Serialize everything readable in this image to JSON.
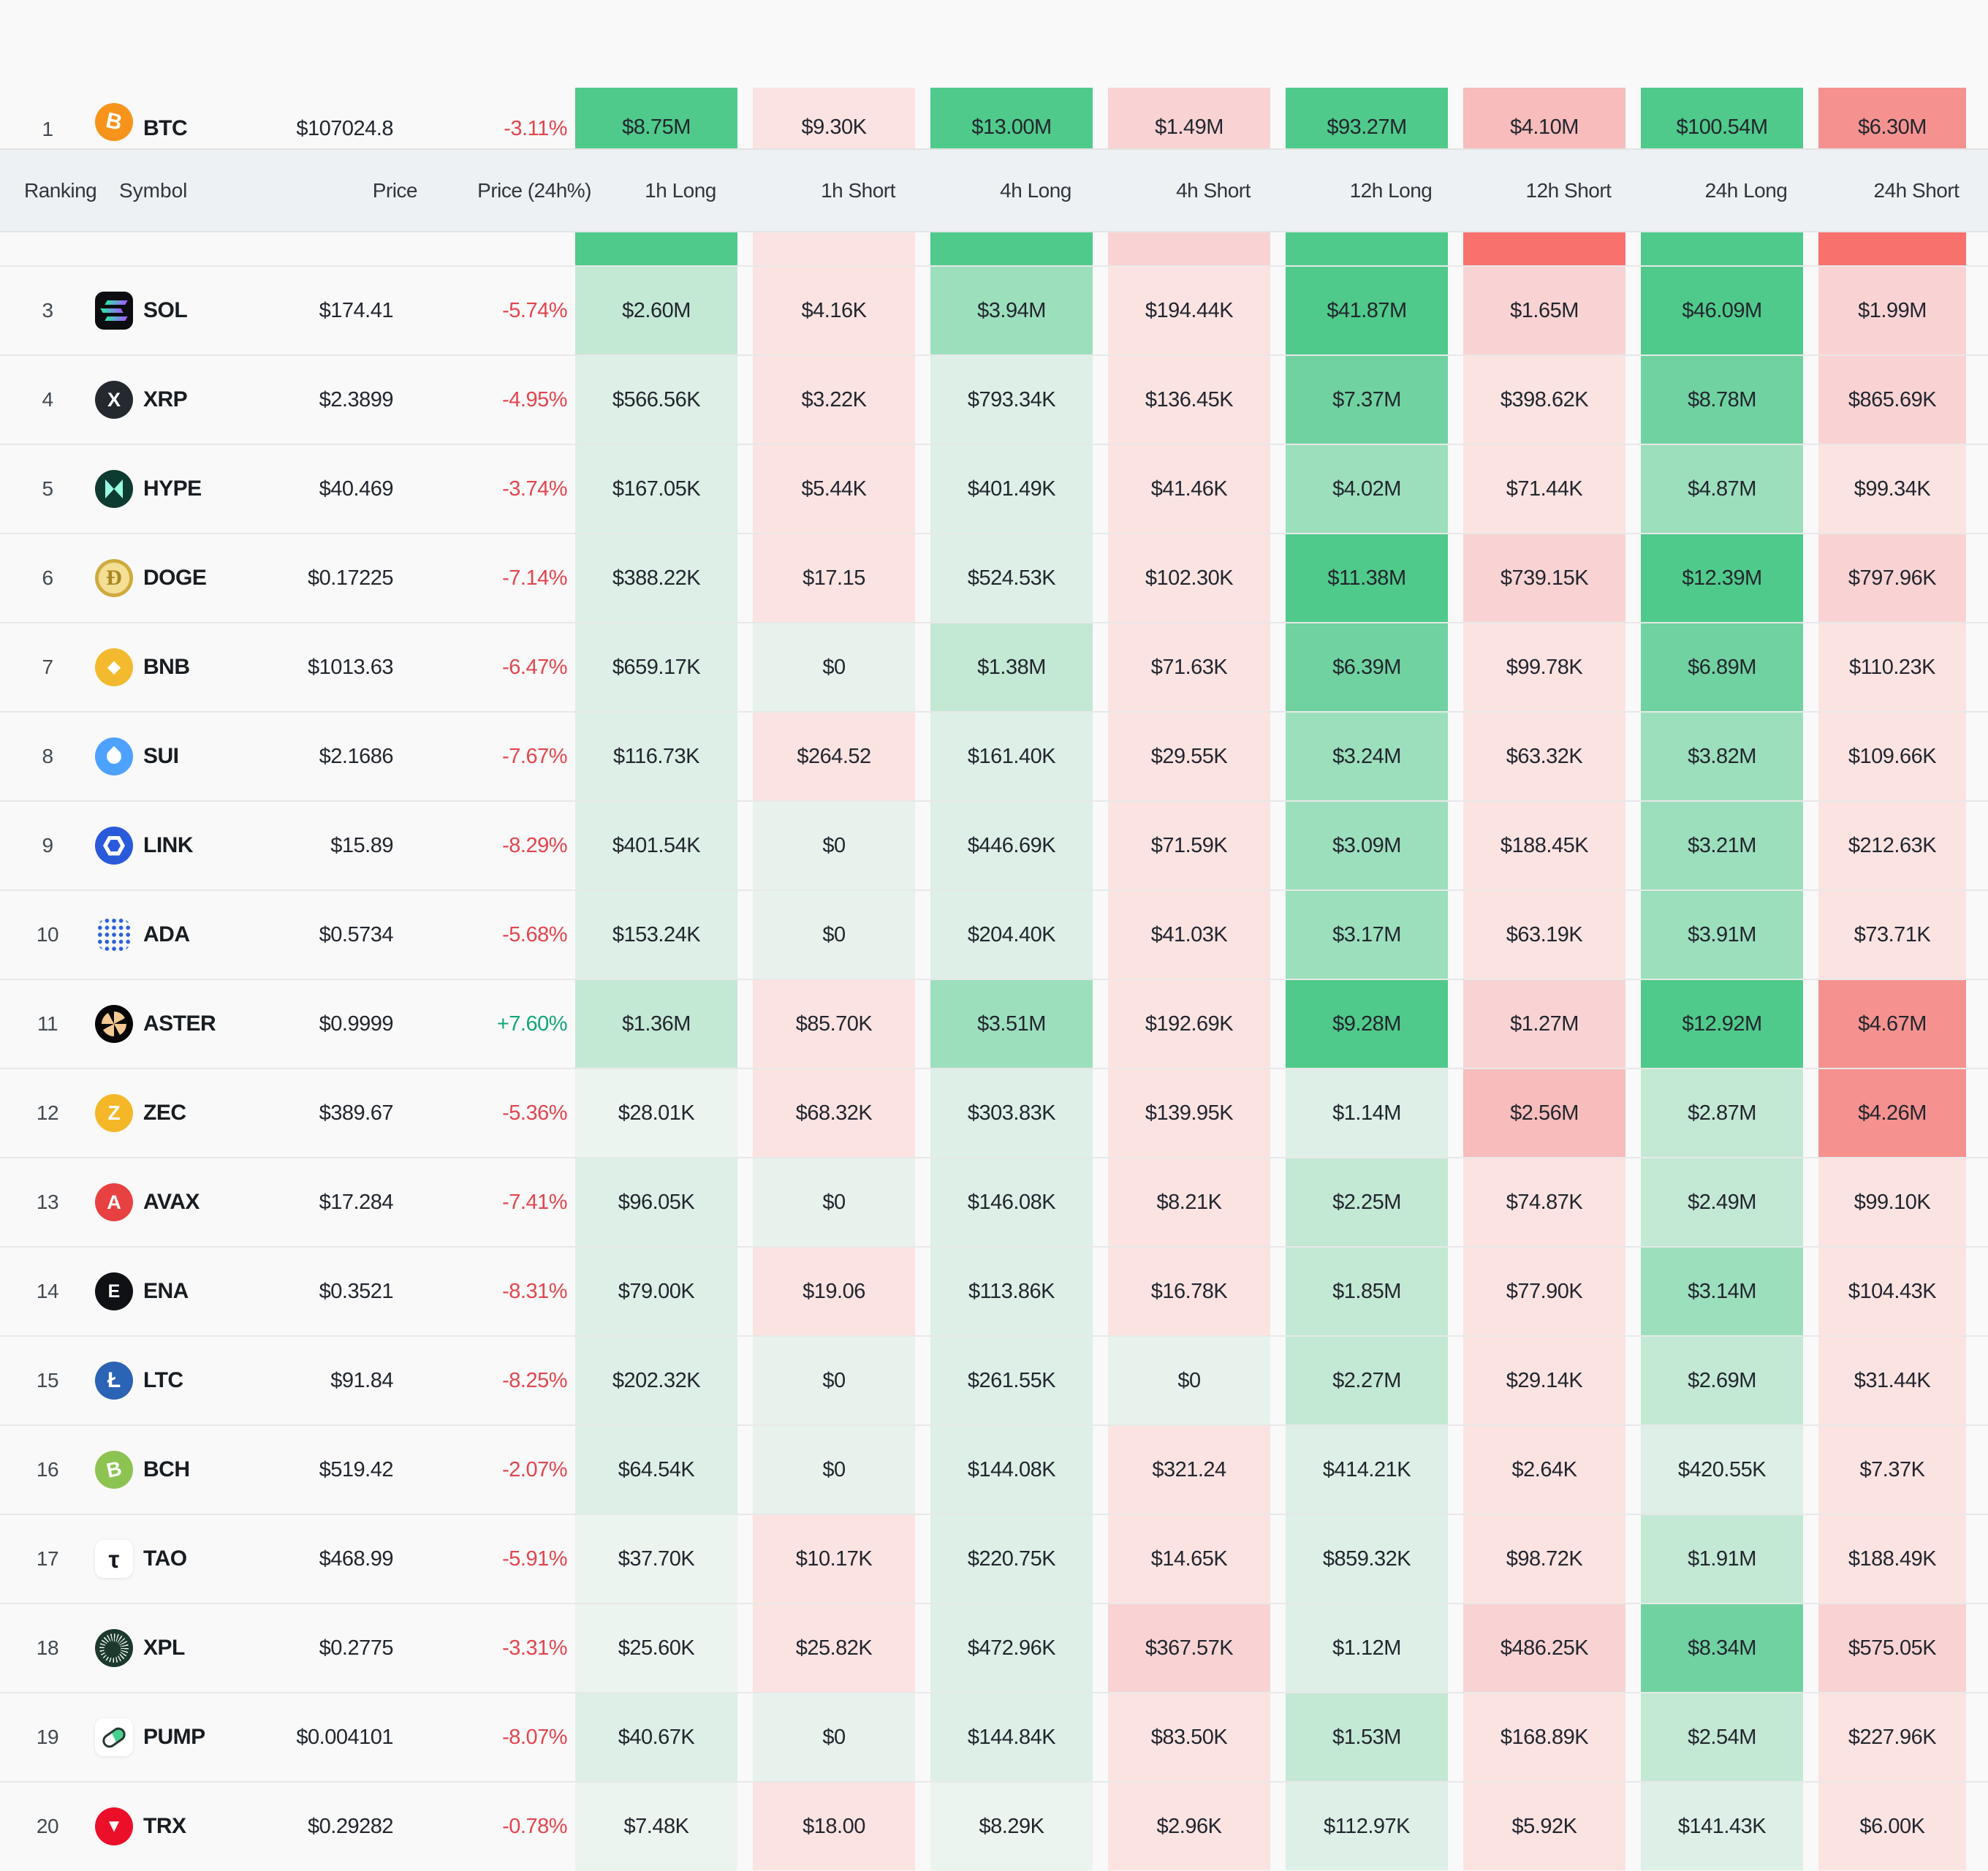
{
  "palette": {
    "g0": "#ebf4ee",
    "g1": "#ddefe6",
    "g2": "#c3e8d4",
    "g3": "#9cdfbd",
    "g4": "#70d2a1",
    "g5": "#4fca8b",
    "r1": "#fbe3e2",
    "r2": "#f9d3d3",
    "r3": "#f7bcbb",
    "r4": "#f5928f",
    "r5": "#f8716d",
    "z": "#e8f2ec"
  },
  "accents": {
    "negative": "#e3454d",
    "positive": "#13a57c",
    "header_bg": "#edf1f3"
  },
  "header": {
    "cols": [
      "Ranking",
      "Symbol",
      "Price",
      "Price (24h%)",
      "1h Long",
      "1h Short",
      "4h Long",
      "4h Short",
      "12h Long",
      "12h Short",
      "24h Long",
      "24h Short"
    ]
  },
  "rows": [
    {
      "kind": "top",
      "rank": "1",
      "symbol": "BTC",
      "price": "$107024.8",
      "change": "-3.11%",
      "icon": {
        "style": "glyph",
        "bg": "#f7931a",
        "fg": "#ffffff",
        "glyph": "B",
        "size": 30,
        "rotate": 12
      },
      "cells": [
        {
          "v": "$8.75M",
          "c": "g5"
        },
        {
          "v": "$9.30K",
          "c": "r1"
        },
        {
          "v": "$13.00M",
          "c": "g5"
        },
        {
          "v": "$1.49M",
          "c": "r2"
        },
        {
          "v": "$93.27M",
          "c": "g5"
        },
        {
          "v": "$4.10M",
          "c": "r3"
        },
        {
          "v": "$100.54M",
          "c": "g5"
        },
        {
          "v": "$6.30M",
          "c": "r4"
        }
      ]
    },
    {
      "kind": "sliver",
      "rank": "",
      "symbol": "",
      "price": "",
      "change": "",
      "cells": [
        {
          "v": "",
          "c": "g5"
        },
        {
          "v": "",
          "c": "r1"
        },
        {
          "v": "",
          "c": "g5"
        },
        {
          "v": "",
          "c": "r2"
        },
        {
          "v": "",
          "c": "g5"
        },
        {
          "v": "",
          "c": "r5"
        },
        {
          "v": "",
          "c": "g5"
        },
        {
          "v": "",
          "c": "r5"
        }
      ]
    },
    {
      "rank": "3",
      "symbol": "SOL",
      "price": "$174.41",
      "change": "-5.74%",
      "icon": {
        "style": "sol",
        "bg": "#0c0d10",
        "shape": "square"
      },
      "cells": [
        {
          "v": "$2.60M",
          "c": "g2"
        },
        {
          "v": "$4.16K",
          "c": "r1"
        },
        {
          "v": "$3.94M",
          "c": "g3"
        },
        {
          "v": "$194.44K",
          "c": "r1"
        },
        {
          "v": "$41.87M",
          "c": "g5"
        },
        {
          "v": "$1.65M",
          "c": "r2"
        },
        {
          "v": "$46.09M",
          "c": "g5"
        },
        {
          "v": "$1.99M",
          "c": "r2"
        }
      ]
    },
    {
      "rank": "4",
      "symbol": "XRP",
      "price": "$2.3899",
      "change": "-4.95%",
      "icon": {
        "style": "glyph",
        "bg": "#23292f",
        "fg": "#ffffff",
        "glyph": "X",
        "size": 27
      },
      "cells": [
        {
          "v": "$566.56K",
          "c": "g1"
        },
        {
          "v": "$3.22K",
          "c": "r1"
        },
        {
          "v": "$793.34K",
          "c": "g1"
        },
        {
          "v": "$136.45K",
          "c": "r1"
        },
        {
          "v": "$7.37M",
          "c": "g4"
        },
        {
          "v": "$398.62K",
          "c": "r1"
        },
        {
          "v": "$8.78M",
          "c": "g4"
        },
        {
          "v": "$865.69K",
          "c": "r2"
        }
      ]
    },
    {
      "rank": "5",
      "symbol": "HYPE",
      "price": "$40.469",
      "change": "-3.74%",
      "icon": {
        "style": "hype",
        "bg": "#0e3b31"
      },
      "cells": [
        {
          "v": "$167.05K",
          "c": "g1"
        },
        {
          "v": "$5.44K",
          "c": "r1"
        },
        {
          "v": "$401.49K",
          "c": "g1"
        },
        {
          "v": "$41.46K",
          "c": "r1"
        },
        {
          "v": "$4.02M",
          "c": "g3"
        },
        {
          "v": "$71.44K",
          "c": "r1"
        },
        {
          "v": "$4.87M",
          "c": "g3"
        },
        {
          "v": "$99.34K",
          "c": "r1"
        }
      ]
    },
    {
      "rank": "6",
      "symbol": "DOGE",
      "price": "$0.17225",
      "change": "-7.14%",
      "icon": {
        "style": "doge"
      },
      "cells": [
        {
          "v": "$388.22K",
          "c": "g1"
        },
        {
          "v": "$17.15",
          "c": "r1"
        },
        {
          "v": "$524.53K",
          "c": "g1"
        },
        {
          "v": "$102.30K",
          "c": "r1"
        },
        {
          "v": "$11.38M",
          "c": "g5"
        },
        {
          "v": "$739.15K",
          "c": "r2"
        },
        {
          "v": "$12.39M",
          "c": "g5"
        },
        {
          "v": "$797.96K",
          "c": "r2"
        }
      ]
    },
    {
      "rank": "7",
      "symbol": "BNB",
      "price": "$1013.63",
      "change": "-6.47%",
      "icon": {
        "style": "glyph",
        "bg": "#f3ba2f",
        "fg": "#ffffff",
        "glyph": "◆",
        "size": 24
      },
      "cells": [
        {
          "v": "$659.17K",
          "c": "g1"
        },
        {
          "v": "$0",
          "c": "z"
        },
        {
          "v": "$1.38M",
          "c": "g2"
        },
        {
          "v": "$71.63K",
          "c": "r1"
        },
        {
          "v": "$6.39M",
          "c": "g4"
        },
        {
          "v": "$99.78K",
          "c": "r1"
        },
        {
          "v": "$6.89M",
          "c": "g4"
        },
        {
          "v": "$110.23K",
          "c": "r1"
        }
      ]
    },
    {
      "rank": "8",
      "symbol": "SUI",
      "price": "$2.1686",
      "change": "-7.67%",
      "icon": {
        "style": "sui",
        "bg": "#4da2ff"
      },
      "cells": [
        {
          "v": "$116.73K",
          "c": "g1"
        },
        {
          "v": "$264.52",
          "c": "r1"
        },
        {
          "v": "$161.40K",
          "c": "g1"
        },
        {
          "v": "$29.55K",
          "c": "r1"
        },
        {
          "v": "$3.24M",
          "c": "g3"
        },
        {
          "v": "$63.32K",
          "c": "r1"
        },
        {
          "v": "$3.82M",
          "c": "g3"
        },
        {
          "v": "$109.66K",
          "c": "r1"
        }
      ]
    },
    {
      "rank": "9",
      "symbol": "LINK",
      "price": "$15.89",
      "change": "-8.29%",
      "icon": {
        "style": "link",
        "bg": "#2a5ada"
      },
      "cells": [
        {
          "v": "$401.54K",
          "c": "g1"
        },
        {
          "v": "$0",
          "c": "z"
        },
        {
          "v": "$446.69K",
          "c": "g1"
        },
        {
          "v": "$71.59K",
          "c": "r1"
        },
        {
          "v": "$3.09M",
          "c": "g3"
        },
        {
          "v": "$188.45K",
          "c": "r1"
        },
        {
          "v": "$3.21M",
          "c": "g3"
        },
        {
          "v": "$212.63K",
          "c": "r1"
        }
      ]
    },
    {
      "rank": "10",
      "symbol": "ADA",
      "price": "$0.5734",
      "change": "-5.68%",
      "icon": {
        "style": "ada"
      },
      "cells": [
        {
          "v": "$153.24K",
          "c": "g1"
        },
        {
          "v": "$0",
          "c": "z"
        },
        {
          "v": "$204.40K",
          "c": "g1"
        },
        {
          "v": "$41.03K",
          "c": "r1"
        },
        {
          "v": "$3.17M",
          "c": "g3"
        },
        {
          "v": "$63.19K",
          "c": "r1"
        },
        {
          "v": "$3.91M",
          "c": "g3"
        },
        {
          "v": "$73.71K",
          "c": "r1"
        }
      ]
    },
    {
      "rank": "11",
      "symbol": "ASTER",
      "price": "$0.9999",
      "change": "+7.60%",
      "icon": {
        "style": "aster",
        "bg": "#060606"
      },
      "cells": [
        {
          "v": "$1.36M",
          "c": "g2"
        },
        {
          "v": "$85.70K",
          "c": "r1"
        },
        {
          "v": "$3.51M",
          "c": "g3"
        },
        {
          "v": "$192.69K",
          "c": "r1"
        },
        {
          "v": "$9.28M",
          "c": "g5"
        },
        {
          "v": "$1.27M",
          "c": "r2"
        },
        {
          "v": "$12.92M",
          "c": "g5"
        },
        {
          "v": "$4.67M",
          "c": "r4"
        }
      ]
    },
    {
      "rank": "12",
      "symbol": "ZEC",
      "price": "$389.67",
      "change": "-5.36%",
      "icon": {
        "style": "glyph",
        "bg": "#f4b728",
        "fg": "#ffffff",
        "glyph": "Z",
        "size": 28
      },
      "cells": [
        {
          "v": "$28.01K",
          "c": "g0"
        },
        {
          "v": "$68.32K",
          "c": "r1"
        },
        {
          "v": "$303.83K",
          "c": "g1"
        },
        {
          "v": "$139.95K",
          "c": "r1"
        },
        {
          "v": "$1.14M",
          "c": "g1"
        },
        {
          "v": "$2.56M",
          "c": "r3"
        },
        {
          "v": "$2.87M",
          "c": "g2"
        },
        {
          "v": "$4.26M",
          "c": "r4"
        }
      ]
    },
    {
      "rank": "13",
      "symbol": "AVAX",
      "price": "$17.284",
      "change": "-7.41%",
      "icon": {
        "style": "glyph",
        "bg": "#e84142",
        "fg": "#ffffff",
        "glyph": "A",
        "size": 27
      },
      "cells": [
        {
          "v": "$96.05K",
          "c": "g1"
        },
        {
          "v": "$0",
          "c": "z"
        },
        {
          "v": "$146.08K",
          "c": "g1"
        },
        {
          "v": "$8.21K",
          "c": "r1"
        },
        {
          "v": "$2.25M",
          "c": "g2"
        },
        {
          "v": "$74.87K",
          "c": "r1"
        },
        {
          "v": "$2.49M",
          "c": "g2"
        },
        {
          "v": "$99.10K",
          "c": "r1"
        }
      ]
    },
    {
      "rank": "14",
      "symbol": "ENA",
      "price": "$0.3521",
      "change": "-8.31%",
      "icon": {
        "style": "glyph",
        "bg": "#101114",
        "fg": "#ffffff",
        "glyph": "E",
        "size": 25
      },
      "cells": [
        {
          "v": "$79.00K",
          "c": "g1"
        },
        {
          "v": "$19.06",
          "c": "r1"
        },
        {
          "v": "$113.86K",
          "c": "g1"
        },
        {
          "v": "$16.78K",
          "c": "r1"
        },
        {
          "v": "$1.85M",
          "c": "g2"
        },
        {
          "v": "$77.90K",
          "c": "r1"
        },
        {
          "v": "$3.14M",
          "c": "g3"
        },
        {
          "v": "$104.43K",
          "c": "r1"
        }
      ]
    },
    {
      "rank": "15",
      "symbol": "LTC",
      "price": "$91.84",
      "change": "-8.25%",
      "icon": {
        "style": "glyph",
        "bg": "#2b63b5",
        "fg": "#ffffff",
        "glyph": "Ł",
        "size": 30
      },
      "cells": [
        {
          "v": "$202.32K",
          "c": "g1"
        },
        {
          "v": "$0",
          "c": "z"
        },
        {
          "v": "$261.55K",
          "c": "g1"
        },
        {
          "v": "$0",
          "c": "z"
        },
        {
          "v": "$2.27M",
          "c": "g2"
        },
        {
          "v": "$29.14K",
          "c": "r1"
        },
        {
          "v": "$2.69M",
          "c": "g2"
        },
        {
          "v": "$31.44K",
          "c": "r1"
        }
      ]
    },
    {
      "rank": "16",
      "symbol": "BCH",
      "price": "$519.42",
      "change": "-2.07%",
      "icon": {
        "style": "glyph",
        "bg": "#8dc351",
        "fg": "#ffffff",
        "glyph": "B",
        "size": 28,
        "rotate": -12
      },
      "cells": [
        {
          "v": "$64.54K",
          "c": "g1"
        },
        {
          "v": "$0",
          "c": "z"
        },
        {
          "v": "$144.08K",
          "c": "g1"
        },
        {
          "v": "$321.24",
          "c": "r1"
        },
        {
          "v": "$414.21K",
          "c": "g1"
        },
        {
          "v": "$2.64K",
          "c": "r1"
        },
        {
          "v": "$420.55K",
          "c": "g1"
        },
        {
          "v": "$7.37K",
          "c": "r1"
        }
      ]
    },
    {
      "rank": "17",
      "symbol": "TAO",
      "price": "$468.99",
      "change": "-5.91%",
      "icon": {
        "style": "glyph",
        "bg": "#ffffff",
        "fg": "#15181c",
        "glyph": "τ",
        "size": 33,
        "shape": "square",
        "shadow": true
      },
      "cells": [
        {
          "v": "$37.70K",
          "c": "g0"
        },
        {
          "v": "$10.17K",
          "c": "r1"
        },
        {
          "v": "$220.75K",
          "c": "g1"
        },
        {
          "v": "$14.65K",
          "c": "r1"
        },
        {
          "v": "$859.32K",
          "c": "g1"
        },
        {
          "v": "$98.72K",
          "c": "r1"
        },
        {
          "v": "$1.91M",
          "c": "g2"
        },
        {
          "v": "$188.49K",
          "c": "r1"
        }
      ]
    },
    {
      "rank": "18",
      "symbol": "XPL",
      "price": "$0.2775",
      "change": "-3.31%",
      "icon": {
        "style": "xpl",
        "bg": "#1d392d"
      },
      "cells": [
        {
          "v": "$25.60K",
          "c": "g0"
        },
        {
          "v": "$25.82K",
          "c": "r1"
        },
        {
          "v": "$472.96K",
          "c": "g1"
        },
        {
          "v": "$367.57K",
          "c": "r2"
        },
        {
          "v": "$1.12M",
          "c": "g1"
        },
        {
          "v": "$486.25K",
          "c": "r2"
        },
        {
          "v": "$8.34M",
          "c": "g4"
        },
        {
          "v": "$575.05K",
          "c": "r2"
        }
      ]
    },
    {
      "rank": "19",
      "symbol": "PUMP",
      "price": "$0.004101",
      "change": "-8.07%",
      "icon": {
        "style": "pump",
        "bg": "#ffffff",
        "shape": "square",
        "shadow": true
      },
      "cells": [
        {
          "v": "$40.67K",
          "c": "g1"
        },
        {
          "v": "$0",
          "c": "z"
        },
        {
          "v": "$144.84K",
          "c": "g1"
        },
        {
          "v": "$83.50K",
          "c": "r1"
        },
        {
          "v": "$1.53M",
          "c": "g2"
        },
        {
          "v": "$168.89K",
          "c": "r1"
        },
        {
          "v": "$2.54M",
          "c": "g2"
        },
        {
          "v": "$227.96K",
          "c": "r1"
        }
      ]
    },
    {
      "rank": "20",
      "symbol": "TRX",
      "price": "$0.29282",
      "change": "-0.78%",
      "icon": {
        "style": "glyph",
        "bg": "#eb0f2a",
        "fg": "#ffffff",
        "glyph": "▼",
        "size": 24
      },
      "cells": [
        {
          "v": "$7.48K",
          "c": "g0"
        },
        {
          "v": "$18.00",
          "c": "r1"
        },
        {
          "v": "$8.29K",
          "c": "g0"
        },
        {
          "v": "$2.96K",
          "c": "r1"
        },
        {
          "v": "$112.97K",
          "c": "g1"
        },
        {
          "v": "$5.92K",
          "c": "r1"
        },
        {
          "v": "$141.43K",
          "c": "g1"
        },
        {
          "v": "$6.00K",
          "c": "r1"
        }
      ]
    }
  ]
}
